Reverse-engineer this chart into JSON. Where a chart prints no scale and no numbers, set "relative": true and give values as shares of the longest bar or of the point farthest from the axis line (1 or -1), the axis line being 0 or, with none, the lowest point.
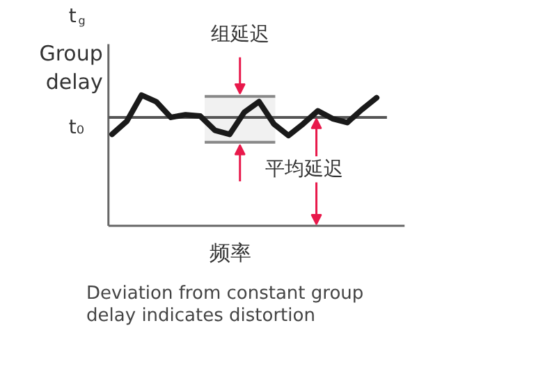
{
  "chart_data": {
    "type": "line",
    "relative": true,
    "ylabel": "Group\ndelay",
    "xlabel": "频率",
    "categories": [
      null,
      null,
      null,
      null,
      null,
      null,
      null,
      null,
      null,
      null,
      null,
      null,
      null,
      null,
      null,
      null,
      null,
      null,
      null
    ],
    "series": [
      {
        "color": "#1a1a1a",
        "values": [
          0.7,
          0.8,
          1.0,
          0.95,
          0.83,
          0.85,
          0.84,
          0.73,
          0.7,
          0.87,
          0.95,
          0.78,
          0.69,
          0.78,
          0.88,
          0.82,
          0.79,
          0.89,
          0.98
        ]
      }
    ],
    "ref_lines": [
      {
        "axis": "y",
        "value": 0.83,
        "label": "平均延迟",
        "color": "#555555"
      }
    ],
    "bands": [
      {
        "axis": "y",
        "from": 0.64,
        "to": 0.99,
        "label": "组延迟",
        "color": "#888888"
      }
    ],
    "annotations": [
      "t$_{g}$",
      "t₀",
      "Deviation from constant group\ndelay indicates distortion"
    ],
    "marker": "none",
    "line_style": "solid"
  }
}
